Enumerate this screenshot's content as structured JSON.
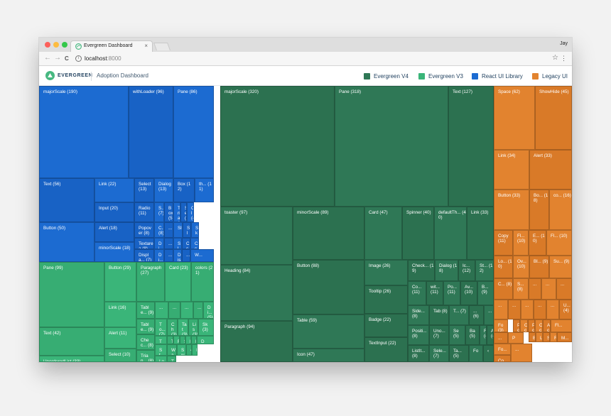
{
  "browser": {
    "tab_title": "Evergreen Dashboard",
    "tab_close": "×",
    "profile_name": "Jay",
    "url_host": "localhost",
    "url_port": ":8000",
    "back_icon": "←",
    "forward_icon": "→",
    "reload_icon": "C",
    "info_icon": "i",
    "star_icon": "☆",
    "menu_icon": "⋮"
  },
  "app": {
    "logo_text": "EVERGREEN",
    "title": "Adoption Dashboard",
    "legend": [
      {
        "label": "Evergreen V4",
        "color": "#2f7856"
      },
      {
        "label": "Evergreen V3",
        "color": "#3ab579"
      },
      {
        "label": "React UI Library",
        "color": "#1c6bd1"
      },
      {
        "label": "Legacy UI",
        "color": "#e2832f"
      }
    ]
  },
  "treemap": {
    "cells": [
      {
        "label": "majorScale (190)",
        "g": "blue"
      },
      {
        "label": "withLoader (96)",
        "g": "blue"
      },
      {
        "label": "Pane (86)",
        "g": "blue"
      },
      {
        "label": "Text (56)",
        "g": "blue"
      },
      {
        "label": "Link (22)",
        "g": "blue"
      },
      {
        "label": "Input (20)",
        "g": "blue"
      },
      {
        "label": "Button (50)",
        "g": "blue"
      },
      {
        "label": "Alert (18)",
        "g": "blue"
      },
      {
        "label": "minorScale (18)",
        "g": "blue"
      },
      {
        "label": "Select (13)",
        "g": "blue"
      },
      {
        "label": "Dialog (13)",
        "g": "blue"
      },
      {
        "label": "Box (12)",
        "g": "blue"
      },
      {
        "label": "th... (11)",
        "g": "blue"
      },
      {
        "label": "Radio (11)",
        "g": "blue"
      },
      {
        "label": "S... (7)",
        "g": "blue"
      },
      {
        "label": "Box (5)",
        "g": "blue"
      },
      {
        "label": "Tria (5)",
        "g": "blue"
      },
      {
        "label": "Se (4)",
        "g": "blue"
      },
      {
        "label": "Cl (4)",
        "g": "blue"
      },
      {
        "label": "Popover (8)",
        "g": "blue"
      },
      {
        "label": "C... (8)",
        "g": "blue"
      },
      {
        "label": "...",
        "g": "blue"
      },
      {
        "label": "Sl",
        "g": "blue"
      },
      {
        "label": "Sl",
        "g": "blue"
      },
      {
        "label": "Sk",
        "g": "blue"
      },
      {
        "label": "Textarea (8)",
        "g": "blue"
      },
      {
        "label": "Di... (8)",
        "g": "blue"
      },
      {
        "label": "...",
        "g": "blue"
      },
      {
        "label": "Sl",
        "g": "blue"
      },
      {
        "label": "Cc",
        "g": "blue"
      },
      {
        "label": "Cc",
        "g": "blue"
      },
      {
        "label": "Displa... (7)",
        "g": "blue"
      },
      {
        "label": "Di...",
        "g": "blue"
      },
      {
        "label": "...",
        "g": "blue"
      },
      {
        "label": "Dis",
        "g": "blue"
      },
      {
        "label": "...",
        "g": "blue"
      },
      {
        "label": "W...",
        "g": "blue"
      },
      {
        "label": "Pane (99)",
        "g": "green"
      },
      {
        "label": "Button (29)",
        "g": "green"
      },
      {
        "label": "Paragraph (27)",
        "g": "green"
      },
      {
        "label": "Card (23)",
        "g": "green"
      },
      {
        "label": "colors (21)",
        "g": "green"
      },
      {
        "label": "Link (16)",
        "g": "green"
      },
      {
        "label": "Table... (9)",
        "g": "green"
      },
      {
        "label": "...",
        "g": "green"
      },
      {
        "label": "...",
        "g": "green"
      },
      {
        "label": "...",
        "g": "green"
      },
      {
        "label": "...",
        "g": "green"
      },
      {
        "label": "Di... (5)",
        "g": "green"
      },
      {
        "label": "Text (42)",
        "g": "green"
      },
      {
        "label": "Alert (11)",
        "g": "green"
      },
      {
        "label": "Table... (9)",
        "g": "green"
      },
      {
        "label": "To... (7)",
        "g": "green"
      },
      {
        "label": "Ch (3)",
        "g": "green"
      },
      {
        "label": "Tat (3)",
        "g": "green"
      },
      {
        "label": "Lis (3)",
        "g": "green"
      },
      {
        "label": "Sk (3)",
        "g": "green"
      },
      {
        "label": "Chec... (8)",
        "g": "green"
      },
      {
        "label": "Ta... (7)",
        "g": "green"
      },
      {
        "label": "T",
        "g": "green"
      },
      {
        "label": "R",
        "g": "green"
      },
      {
        "label": "S",
        "g": "green"
      },
      {
        "label": "Ir",
        "g": "green"
      },
      {
        "label": "Ic",
        "g": "green"
      },
      {
        "label": "D",
        "g": "green"
      },
      {
        "label": "Select (10)",
        "g": "green"
      },
      {
        "label": "St... (7)",
        "g": "green"
      },
      {
        "label": "Wa",
        "g": "green"
      },
      {
        "label": "Sw",
        "g": "green"
      },
      {
        "label": "‹",
        "g": "green"
      },
      {
        "label": "I",
        "g": "green"
      },
      {
        "label": "Trian... (8)",
        "g": "green"
      },
      {
        "label": "Lo",
        "g": "green"
      },
      {
        "label": "Tex",
        "g": "green"
      },
      {
        "label": "UnorderedList (33)",
        "g": "green"
      },
      {
        "label": "majorScale (320)",
        "g": "dark"
      },
      {
        "label": "Pane (318)",
        "g": "dark"
      },
      {
        "label": "Text (127)",
        "g": "dark"
      },
      {
        "label": "toaster (97)",
        "g": "dark"
      },
      {
        "label": "minorScale (89)",
        "g": "dark"
      },
      {
        "label": "Card (47)",
        "g": "dark"
      },
      {
        "label": "Spinner (40)",
        "g": "dark"
      },
      {
        "label": "defaultTh... (40)",
        "g": "dark"
      },
      {
        "label": "Link (33)",
        "g": "dark"
      },
      {
        "label": "Heading (84)",
        "g": "dark"
      },
      {
        "label": "Button (88)",
        "g": "dark"
      },
      {
        "label": "Image (26)",
        "g": "dark"
      },
      {
        "label": "Check... (19)",
        "g": "dark"
      },
      {
        "label": "Dialog (18)",
        "g": "dark"
      },
      {
        "label": "Ic... (12)",
        "g": "dark"
      },
      {
        "label": "St... (12)",
        "g": "dark"
      },
      {
        "label": "Tooltip (26)",
        "g": "dark"
      },
      {
        "label": "Co... (11)",
        "g": "dark"
      },
      {
        "label": "wit... (11)",
        "g": "dark"
      },
      {
        "label": "Po... (11)",
        "g": "dark"
      },
      {
        "label": "Av... (10)",
        "g": "dark"
      },
      {
        "label": "B... (9)",
        "g": "dark"
      },
      {
        "label": "Paragraph (94)",
        "g": "dark"
      },
      {
        "label": "Table (59)",
        "g": "dark"
      },
      {
        "label": "Badge (22)",
        "g": "dark"
      },
      {
        "label": "Side... (8)",
        "g": "dark"
      },
      {
        "label": "Tab (8)",
        "g": "dark"
      },
      {
        "label": "T... (7)",
        "g": "dark"
      },
      {
        "label": "... (6)",
        "g": "dark"
      },
      {
        "label": "...",
        "g": "dark"
      },
      {
        "label": "TextInput (22)",
        "g": "dark"
      },
      {
        "label": "Positi... (8)",
        "g": "dark"
      },
      {
        "label": "Uno... (7)",
        "g": "dark"
      },
      {
        "label": "Se (5)",
        "g": "dark"
      },
      {
        "label": "Ba (5)",
        "g": "dark"
      },
      {
        "label": "F (4)",
        "g": "dark"
      },
      {
        "label": "A (4)",
        "g": "dark"
      },
      {
        "label": "Icon (47)",
        "g": "dark"
      },
      {
        "label": "ListIt... (8)",
        "g": "dark"
      },
      {
        "label": "Sele... (7)",
        "g": "dark"
      },
      {
        "label": "Ta... (5)",
        "g": "dark"
      },
      {
        "label": "Fo",
        "g": "dark"
      },
      {
        "label": "‹",
        "g": "dark"
      },
      {
        "label": "Space (62)",
        "g": "orange"
      },
      {
        "label": "ShowHide (45)",
        "g": "orange"
      },
      {
        "label": "Link (34)",
        "g": "orange"
      },
      {
        "label": "Alert (33)",
        "g": "orange"
      },
      {
        "label": "Button (33)",
        "g": "orange"
      },
      {
        "label": "Bo... (18)",
        "g": "orange"
      },
      {
        "label": "co... (16)",
        "g": "orange"
      },
      {
        "label": "Copy (11)",
        "g": "orange"
      },
      {
        "label": "Fl... (10)",
        "g": "orange"
      },
      {
        "label": "E... (10)",
        "g": "orange"
      },
      {
        "label": "Fl... (10)",
        "g": "orange"
      },
      {
        "label": "Lo... (10)",
        "g": "orange"
      },
      {
        "label": "Ov... (10)",
        "g": "orange"
      },
      {
        "label": "Bl... (9)",
        "g": "orange"
      },
      {
        "label": "Su... (9)",
        "g": "orange"
      },
      {
        "label": "C... (8)",
        "g": "orange"
      },
      {
        "label": "S... (8)",
        "g": "orange"
      },
      {
        "label": "...",
        "g": "orange"
      },
      {
        "label": "...",
        "g": "orange"
      },
      {
        "label": "...",
        "g": "orange"
      },
      {
        "label": "...",
        "g": "orange"
      },
      {
        "label": "...",
        "g": "orange"
      },
      {
        "label": "...",
        "g": "orange"
      },
      {
        "label": "...",
        "g": "orange"
      },
      {
        "label": "...",
        "g": "orange"
      },
      {
        "label": "U... (4)",
        "g": "orange"
      },
      {
        "label": "Fo (3)",
        "g": "orange"
      },
      {
        "label": "Pc (3)",
        "g": "orange"
      },
      {
        "label": "Cc (3)",
        "g": "orange"
      },
      {
        "label": "Pc (3)",
        "g": "orange"
      },
      {
        "label": "Cc (3)",
        "g": "orange"
      },
      {
        "label": "Ac (3)",
        "g": "orange"
      },
      {
        "label": "Fl...",
        "g": "orange"
      },
      {
        "label": "...",
        "g": "orange"
      },
      {
        "label": "P",
        "g": "orange"
      },
      {
        "label": "B",
        "g": "orange"
      },
      {
        "label": "L",
        "g": "orange"
      },
      {
        "label": "S",
        "g": "orange"
      },
      {
        "label": "R",
        "g": "orange"
      },
      {
        "label": "M...",
        "g": "orange"
      },
      {
        "label": "Fo...",
        "g": "orange"
      },
      {
        "label": "Co",
        "g": "orange"
      },
      {
        "label": "...",
        "g": "orange"
      }
    ]
  }
}
